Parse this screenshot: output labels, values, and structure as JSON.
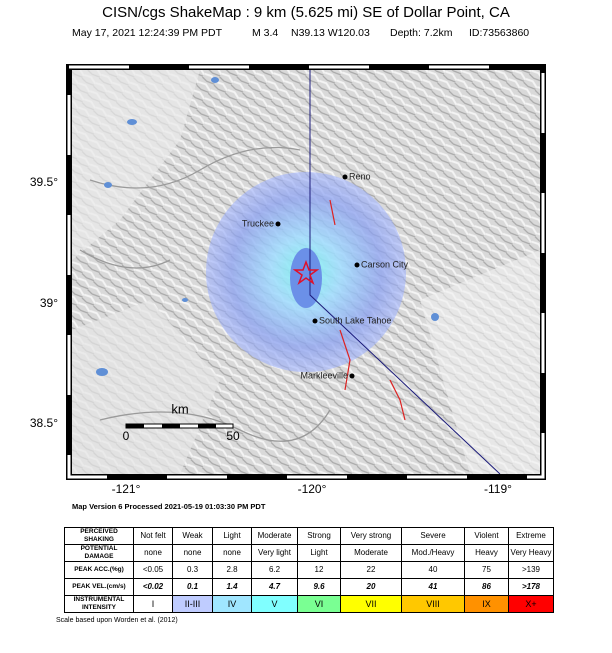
{
  "header": {
    "title": "CISN/cgs ShakeMap : 9 km (5.625 mi) SE of Dollar Point, CA",
    "date": "May 17, 2021 12:24:39 PM PDT",
    "magnitude": "M 3.4",
    "location": "N39.13 W120.03",
    "depth": "Depth: 7.2km",
    "id": "ID:73563860"
  },
  "map": {
    "lat_labels": [
      "39.5°",
      "39°",
      "38.5°"
    ],
    "lon_labels": [
      "-121°",
      "-120°",
      "-119°"
    ],
    "cities": [
      "Reno",
      "Truckee",
      "Carson City",
      "South Lake Tahoe",
      "Markleeville"
    ],
    "scale": {
      "unit": "km",
      "labels": [
        "0",
        "50"
      ]
    }
  },
  "version_note": "Map Version 6 Processed 2021-05-19 01:03:30 PM PDT",
  "legend_table": {
    "rows": [
      {
        "header": "PERCEIVED SHAKING",
        "cells": [
          "Not felt",
          "Weak",
          "Light",
          "Moderate",
          "Strong",
          "Very strong",
          "Severe",
          "Violent",
          "Extreme"
        ]
      },
      {
        "header": "POTENTIAL DAMAGE",
        "cells": [
          "none",
          "none",
          "none",
          "Very light",
          "Light",
          "Moderate",
          "Mod./Heavy",
          "Heavy",
          "Very Heavy"
        ]
      },
      {
        "header": "PEAK ACC.(%g)",
        "cells": [
          "<0.05",
          "0.3",
          "2.8",
          "6.2",
          "12",
          "22",
          "40",
          "75",
          ">139"
        ]
      },
      {
        "header": "PEAK VEL.(cm/s)",
        "cells": [
          "<0.02",
          "0.1",
          "1.4",
          "4.7",
          "9.6",
          "20",
          "41",
          "86",
          ">178"
        ]
      },
      {
        "header": "INSTRUMENTAL INTENSITY",
        "cells": [
          "I",
          "II-III",
          "IV",
          "V",
          "VI",
          "VII",
          "VIII",
          "IX",
          "X+"
        ]
      }
    ]
  },
  "footnote": "Scale based upon Worden et al. (2012)"
}
